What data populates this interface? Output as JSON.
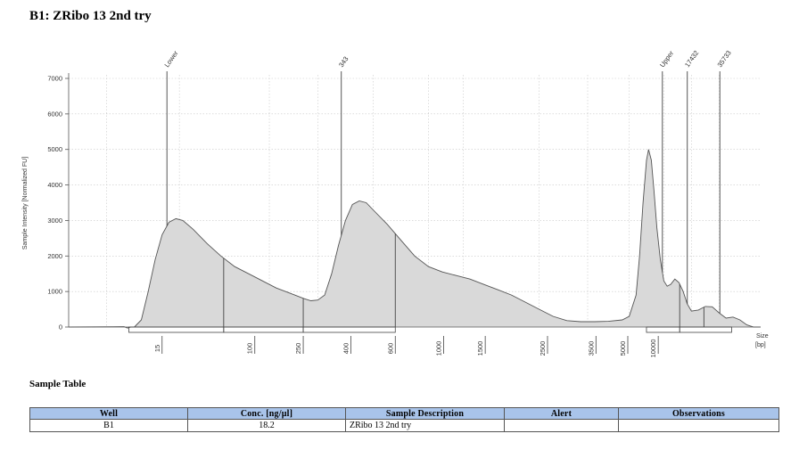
{
  "title": "B1: ZRibo 13 2nd try",
  "chart_data": {
    "type": "area",
    "title": "",
    "ylabel": "Sample Intensity [Normalized FU]",
    "xlabel": "Size [bp]",
    "xlabel_lines": [
      "Size",
      "[bp]"
    ],
    "ylim": [
      0,
      7000
    ],
    "yticks": [
      0,
      1000,
      2000,
      3000,
      4000,
      5000,
      6000,
      7000
    ],
    "grid": true,
    "fill_color": "#d9d9d9",
    "line_color": "#555555",
    "xtick_labels": [
      "15",
      "100",
      "250",
      "400",
      "600",
      "1000",
      "1500",
      "2500",
      "3500",
      "5000",
      "10000"
    ],
    "peak_labels": [
      "Lower",
      "343",
      "Upper",
      "17432",
      "35733"
    ],
    "trace": [
      {
        "x": 0.0,
        "y": 0
      },
      {
        "x": 0.08,
        "y": 10
      },
      {
        "x": 0.085,
        "y": -30
      },
      {
        "x": 0.09,
        "y": 0
      },
      {
        "x": 0.095,
        "y": 0
      },
      {
        "x": 0.105,
        "y": 200
      },
      {
        "x": 0.115,
        "y": 1000
      },
      {
        "x": 0.125,
        "y": 1900
      },
      {
        "x": 0.135,
        "y": 2600
      },
      {
        "x": 0.145,
        "y": 2950
      },
      {
        "x": 0.155,
        "y": 3050
      },
      {
        "x": 0.165,
        "y": 3000
      },
      {
        "x": 0.18,
        "y": 2750
      },
      {
        "x": 0.2,
        "y": 2350
      },
      {
        "x": 0.22,
        "y": 2000
      },
      {
        "x": 0.24,
        "y": 1700
      },
      {
        "x": 0.26,
        "y": 1500
      },
      {
        "x": 0.28,
        "y": 1300
      },
      {
        "x": 0.3,
        "y": 1100
      },
      {
        "x": 0.32,
        "y": 950
      },
      {
        "x": 0.34,
        "y": 800
      },
      {
        "x": 0.35,
        "y": 740
      },
      {
        "x": 0.36,
        "y": 760
      },
      {
        "x": 0.37,
        "y": 900
      },
      {
        "x": 0.38,
        "y": 1500
      },
      {
        "x": 0.39,
        "y": 2300
      },
      {
        "x": 0.4,
        "y": 3000
      },
      {
        "x": 0.41,
        "y": 3450
      },
      {
        "x": 0.42,
        "y": 3550
      },
      {
        "x": 0.43,
        "y": 3500
      },
      {
        "x": 0.44,
        "y": 3300
      },
      {
        "x": 0.46,
        "y": 2900
      },
      {
        "x": 0.48,
        "y": 2450
      },
      {
        "x": 0.5,
        "y": 2000
      },
      {
        "x": 0.52,
        "y": 1700
      },
      {
        "x": 0.54,
        "y": 1550
      },
      {
        "x": 0.56,
        "y": 1450
      },
      {
        "x": 0.58,
        "y": 1350
      },
      {
        "x": 0.6,
        "y": 1200
      },
      {
        "x": 0.62,
        "y": 1050
      },
      {
        "x": 0.64,
        "y": 900
      },
      {
        "x": 0.66,
        "y": 700
      },
      {
        "x": 0.68,
        "y": 500
      },
      {
        "x": 0.7,
        "y": 300
      },
      {
        "x": 0.72,
        "y": 180
      },
      {
        "x": 0.74,
        "y": 150
      },
      {
        "x": 0.76,
        "y": 150
      },
      {
        "x": 0.78,
        "y": 160
      },
      {
        "x": 0.8,
        "y": 200
      },
      {
        "x": 0.81,
        "y": 300
      },
      {
        "x": 0.82,
        "y": 900
      },
      {
        "x": 0.825,
        "y": 2000
      },
      {
        "x": 0.83,
        "y": 3500
      },
      {
        "x": 0.835,
        "y": 4700
      },
      {
        "x": 0.838,
        "y": 5000
      },
      {
        "x": 0.842,
        "y": 4700
      },
      {
        "x": 0.846,
        "y": 3800
      },
      {
        "x": 0.85,
        "y": 2800
      },
      {
        "x": 0.855,
        "y": 1900
      },
      {
        "x": 0.86,
        "y": 1300
      },
      {
        "x": 0.865,
        "y": 1150
      },
      {
        "x": 0.87,
        "y": 1200
      },
      {
        "x": 0.876,
        "y": 1350
      },
      {
        "x": 0.882,
        "y": 1250
      },
      {
        "x": 0.888,
        "y": 1000
      },
      {
        "x": 0.894,
        "y": 650
      },
      {
        "x": 0.9,
        "y": 450
      },
      {
        "x": 0.91,
        "y": 480
      },
      {
        "x": 0.92,
        "y": 580
      },
      {
        "x": 0.93,
        "y": 570
      },
      {
        "x": 0.94,
        "y": 400
      },
      {
        "x": 0.95,
        "y": 250
      },
      {
        "x": 0.96,
        "y": 280
      },
      {
        "x": 0.97,
        "y": 200
      },
      {
        "x": 0.98,
        "y": 60
      },
      {
        "x": 0.99,
        "y": 0
      },
      {
        "x": 1.0,
        "y": 0
      }
    ]
  },
  "sample_table": {
    "title": "Sample Table",
    "headers": [
      "Well",
      "Conc. [ng/µl]",
      "Sample Description",
      "Alert",
      "Observations"
    ],
    "row": {
      "well": "B1",
      "conc": "18.2",
      "description": "ZRibo 13 2nd try",
      "alert": "",
      "observations": ""
    }
  }
}
